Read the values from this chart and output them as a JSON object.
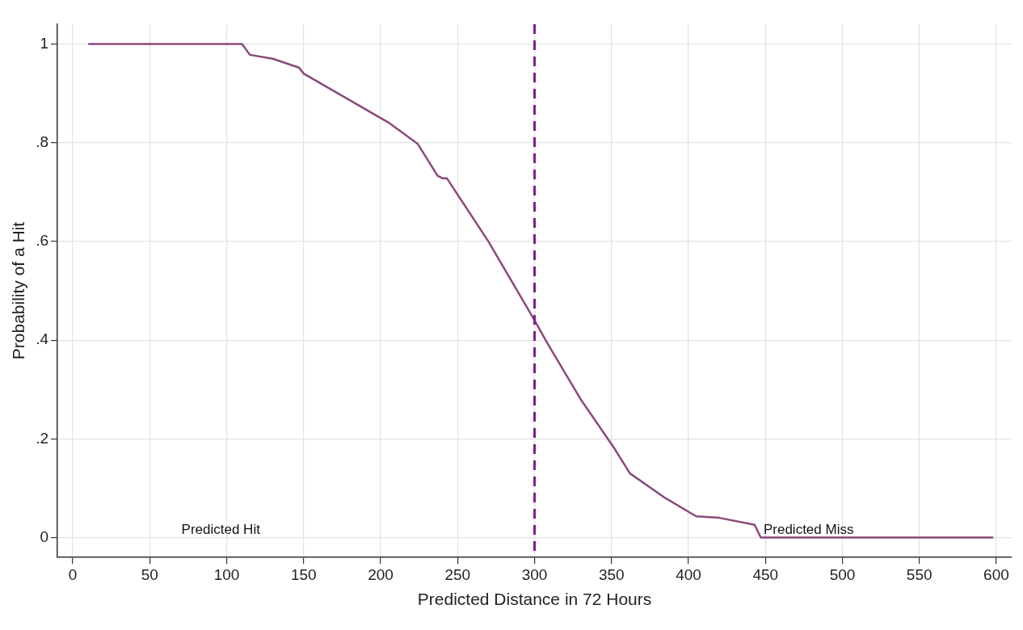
{
  "chart_data": {
    "type": "line",
    "xlabel": "Predicted Distance in 72 Hours",
    "ylabel": "Probability of a Hit",
    "x": [
      10,
      110,
      115,
      130,
      147,
      150,
      175,
      205,
      224,
      237,
      240,
      243,
      270,
      300,
      309,
      330,
      352,
      357,
      362,
      385,
      405,
      420,
      443,
      447,
      500,
      598
    ],
    "series": [
      {
        "color": "#8b4a7a",
        "values": [
          1,
          1,
          0.978,
          0.97,
          0.952,
          0.94,
          0.895,
          0.841,
          0.798,
          0.733,
          0.728,
          0.728,
          0.6,
          0.44,
          0.39,
          0.28,
          0.18,
          0.155,
          0.13,
          0.08,
          0.043,
          0.04,
          0.026,
          0,
          0,
          0
        ]
      }
    ],
    "xlim": [
      -10,
      610
    ],
    "xticks": [
      0,
      50,
      100,
      150,
      200,
      250,
      300,
      350,
      400,
      450,
      500,
      550,
      600
    ],
    "ylim": [
      -0.04,
      1.04
    ],
    "yticks": [
      {
        "value": 0,
        "label": "0"
      },
      {
        "value": 0.2,
        "label": ".2"
      },
      {
        "value": 0.4,
        "label": ".4"
      },
      {
        "value": 0.6,
        "label": ".6"
      },
      {
        "value": 0.8,
        "label": ".8"
      },
      {
        "value": 1,
        "label": "1"
      }
    ],
    "grid": true,
    "legend": false,
    "marker": "none",
    "line_style": "solid",
    "ref_lines": [
      {
        "axis": "x",
        "value": 300,
        "color": "#7b1f8f",
        "line_style": "dashed"
      }
    ],
    "annotations": [
      "Predicted Hit",
      "Predicted Miss"
    ]
  }
}
